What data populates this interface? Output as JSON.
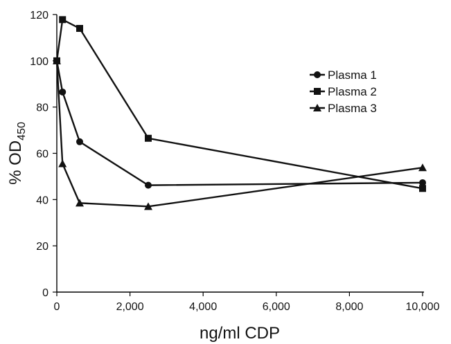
{
  "chart_data": {
    "type": "line",
    "xlabel": "ng/ml CDP",
    "ylabel_prefix": "% OD",
    "ylabel_subscript": "450",
    "xlim": [
      0,
      10000
    ],
    "ylim": [
      0,
      120
    ],
    "x_ticks": [
      0,
      2000,
      4000,
      6000,
      8000,
      10000
    ],
    "x_tick_labels": [
      "0",
      "2,000",
      "4,000",
      "6,000",
      "8,000",
      "10,000"
    ],
    "y_ticks": [
      0,
      20,
      40,
      60,
      80,
      100,
      120
    ],
    "y_tick_labels": [
      "0",
      "20",
      "40",
      "60",
      "80",
      "100",
      "120"
    ],
    "grid": false,
    "legend_position": "right",
    "series": [
      {
        "name": "Plasma 1",
        "marker": "circle",
        "x": [
          0,
          156,
          625,
          2500,
          10000
        ],
        "y": [
          100,
          86.5,
          65,
          46.2,
          47.3
        ]
      },
      {
        "name": "Plasma 2",
        "marker": "square",
        "x": [
          0,
          156,
          625,
          2500,
          10000
        ],
        "y": [
          100,
          117.8,
          114,
          66.5,
          44.8
        ]
      },
      {
        "name": "Plasma 3",
        "marker": "triangle",
        "x": [
          0,
          156,
          625,
          2500,
          10000
        ],
        "y": [
          100,
          55.5,
          38.5,
          37,
          53.8
        ]
      }
    ]
  }
}
